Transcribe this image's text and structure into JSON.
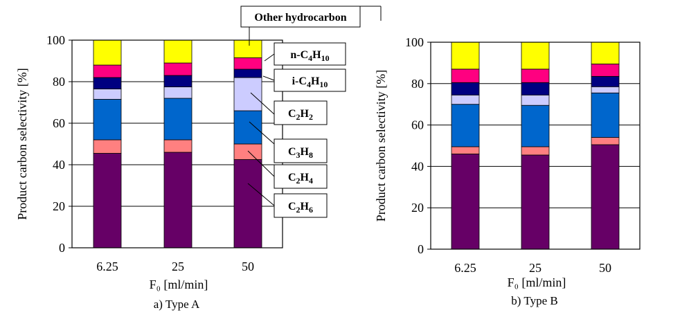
{
  "chart_data": [
    {
      "type": "bar",
      "stacked": true,
      "caption": "a) Type A",
      "xlabel": "F₀ [ml/min]",
      "ylabel": "Product carbon selectivity [%]",
      "categories": [
        "6.25",
        "25",
        "50"
      ],
      "ylim": [
        0,
        100
      ],
      "yticks": [
        0,
        20,
        40,
        60,
        80,
        100
      ],
      "grid": "horizontal",
      "series": [
        {
          "name": "C₂H₆",
          "color": "#660066",
          "values": [
            45.5,
            46,
            42.5
          ]
        },
        {
          "name": "C₂H₄",
          "color": "#ff8080",
          "values": [
            6.5,
            6,
            7.5
          ]
        },
        {
          "name": "C₃H₈",
          "color": "#0066cc",
          "values": [
            19.5,
            20,
            16
          ]
        },
        {
          "name": "C₂H₂",
          "color": "#ccccff",
          "values": [
            5,
            5.5,
            16
          ]
        },
        {
          "name": "i-C₄H₁₀",
          "color": "#000080",
          "values": [
            5.5,
            5.5,
            4
          ]
        },
        {
          "name": "n-C₄H₁₀",
          "color": "#ff0080",
          "values": [
            6,
            6,
            5.5
          ]
        },
        {
          "name": "Other hydrocarbon",
          "color": "#ffff00",
          "values": [
            12,
            11,
            8.5
          ]
        }
      ]
    },
    {
      "type": "bar",
      "stacked": true,
      "caption": "b) Type B",
      "xlabel": "F₀ [ml/min]",
      "ylabel": "Product carbon selectivity [%]",
      "categories": [
        "6.25",
        "25",
        "50"
      ],
      "ylim": [
        0,
        100
      ],
      "yticks": [
        0,
        20,
        40,
        60,
        80,
        100
      ],
      "grid": "horizontal",
      "series": [
        {
          "name": "",
          "color": "#660066",
          "values": [
            46,
            45.5,
            50.5
          ]
        },
        {
          "name": "",
          "color": "#ff8080",
          "values": [
            3.5,
            4,
            3.5
          ]
        },
        {
          "name": "",
          "color": "#0066cc",
          "values": [
            20.5,
            20,
            21.5
          ]
        },
        {
          "name": "",
          "color": "#ccccff",
          "values": [
            4.5,
            5,
            3
          ]
        },
        {
          "name": "",
          "color": "#000080",
          "values": [
            6,
            6,
            5
          ]
        },
        {
          "name": "",
          "color": "#ff0080",
          "values": [
            6.5,
            6.5,
            6
          ]
        },
        {
          "name": "",
          "color": "#ffff00",
          "values": [
            13,
            13,
            10.5
          ]
        }
      ]
    }
  ],
  "legend_labels": [
    {
      "key": "other",
      "base": "Other hydrocarbon"
    },
    {
      "key": "nC4H10",
      "base": "n-C",
      "sub1": "4",
      "mid": "H",
      "sub2": "10"
    },
    {
      "key": "iC4H10",
      "base": "i-C",
      "sub1": "4",
      "mid": "H",
      "sub2": "10"
    },
    {
      "key": "C2H2",
      "base": "C",
      "sub1": "2",
      "mid": "H",
      "sub2": "2"
    },
    {
      "key": "C3H8",
      "base": "C",
      "sub1": "3",
      "mid": "H",
      "sub2": "8"
    },
    {
      "key": "C2H4",
      "base": "C",
      "sub1": "2",
      "mid": "H",
      "sub2": "4"
    },
    {
      "key": "C2H6",
      "base": "C",
      "sub1": "2",
      "mid": "H",
      "sub2": "6"
    }
  ]
}
